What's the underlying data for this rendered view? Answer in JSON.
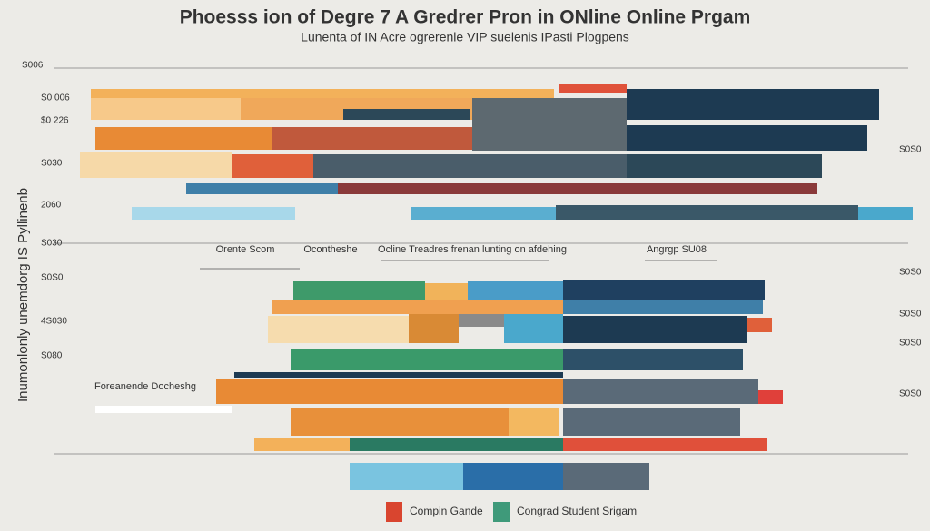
{
  "title": "Phoesss ion of Degre 7 A Gredrer Pron in ONline Online Prgam",
  "subtitle": "Lunenta of IN Acre ogrerenle VIP suelenis IPasti Plogpens",
  "y_axis_label": "Inumonlonly unemdorg IS Pyllinenb",
  "left_labels": [
    "S006",
    "S0 006",
    "$0 226",
    "S030",
    "2060",
    "S030",
    "S0S0",
    "4S030",
    "S080"
  ],
  "right_labels": [
    "S0S0",
    "S0S0",
    "S0S0",
    "S0S0",
    "S0S0"
  ],
  "section_headings": [
    "Orente Scom",
    "Ocontheshe",
    "Ocline Treadres frenan lunting on afdehing",
    "Angrgp SU08"
  ],
  "note": "Foreanende Docheshg",
  "legend": [
    {
      "name": "Compin Gande",
      "color": "#d9452f"
    },
    {
      "name": "Congrad Student Srigam",
      "color": "#3f9a7a"
    }
  ]
}
